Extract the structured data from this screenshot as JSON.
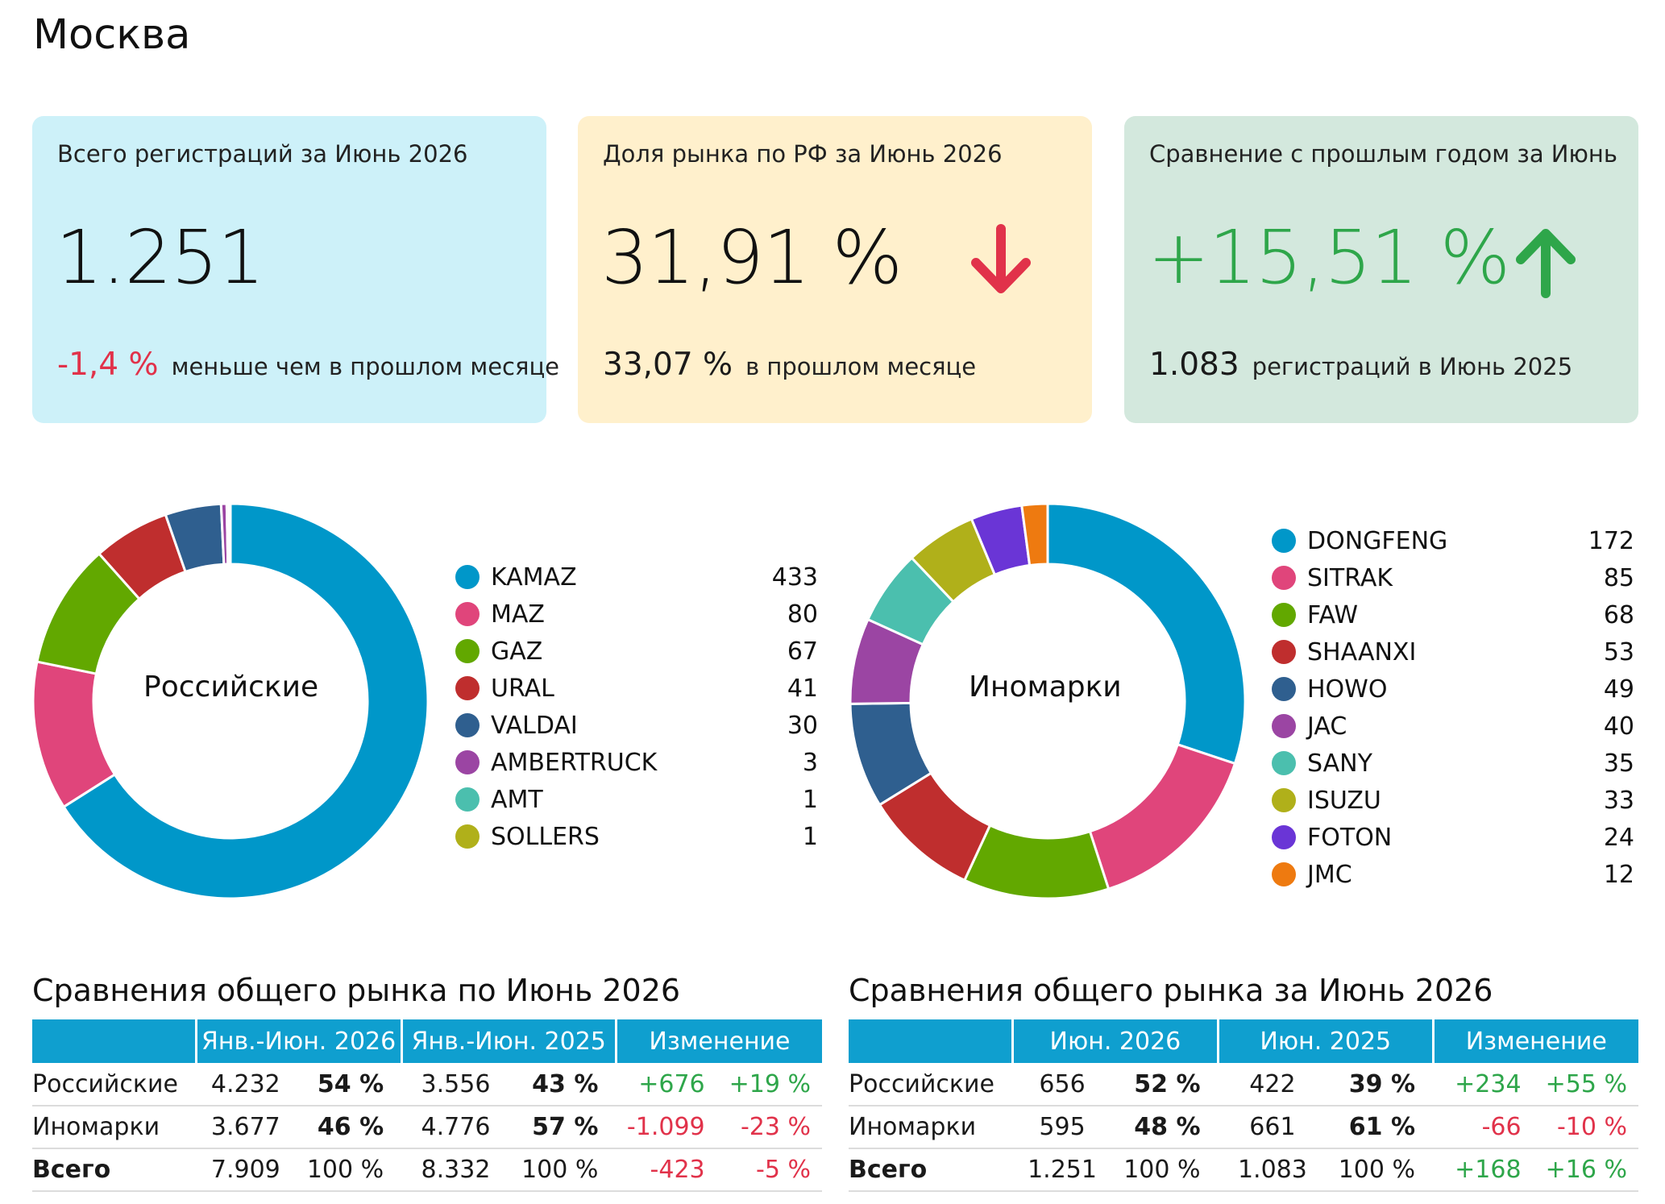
{
  "page": {
    "title": "Москва"
  },
  "cards": [
    {
      "label": "Всего регистраций за Июнь 2026",
      "value": "1.251",
      "foot_value": "-1,4 %",
      "foot_text": "меньше чем в прошлом месяце"
    },
    {
      "label": "Доля рынка по РФ за Июнь 2026",
      "value": "31,91 %",
      "arrow": "arrow-down-icon",
      "foot_value": "33,07 %",
      "foot_text": "в прошлом месяце"
    },
    {
      "label": "Сравнение с прошлым годом за Июнь",
      "value": "+15,51 %",
      "arrow": "arrow-up-icon",
      "foot_value": "1.083",
      "foot_text": "регистраций в Июнь 2025"
    }
  ],
  "colors": {
    "accent_red": "#e1324a",
    "accent_green": "#2ea64a",
    "table_header": "#0f9fcf"
  },
  "chart_data": [
    {
      "type": "pie",
      "title": "Российские",
      "categories": [
        "KAMAZ",
        "MAZ",
        "GAZ",
        "URAL",
        "VALDAI",
        "AMBERTRUCK",
        "AMT",
        "SOLLERS"
      ],
      "values": [
        433,
        80,
        67,
        41,
        30,
        3,
        1,
        1
      ],
      "colors": [
        "#0097c9",
        "#e0457b",
        "#62a800",
        "#bf2e2e",
        "#2f5f8f",
        "#9b45a3",
        "#4bbfae",
        "#b0b01a"
      ],
      "legend": "right"
    },
    {
      "type": "pie",
      "title": "Иномарки",
      "categories": [
        "DONGFENG",
        "SITRAK",
        "FAW",
        "SHAANXI",
        "HOWO",
        "JAC",
        "SANY",
        "ISUZU",
        "FOTON",
        "JMC"
      ],
      "values": [
        172,
        85,
        68,
        53,
        49,
        40,
        35,
        33,
        24,
        12
      ],
      "colors": [
        "#0097c9",
        "#e0457b",
        "#62a800",
        "#bf2e2e",
        "#2f5f8f",
        "#9b45a3",
        "#4bbfae",
        "#b0b01a",
        "#6a35d6",
        "#ee7a10"
      ],
      "legend": "right"
    },
    {
      "type": "table",
      "title": "Сравнения общего рынка по Июнь 2026",
      "columns": [
        "Янв.-Июн. 2026",
        "Янв.-Июн. 2025",
        "Изменение"
      ],
      "rows": [
        {
          "label": "Российские",
          "c1": "4.232",
          "p1": "54 %",
          "c2": "3.556",
          "p2": "43 %",
          "d": "+676",
          "dp": "+19 %",
          "sign": "pos"
        },
        {
          "label": "Иномарки",
          "c1": "3.677",
          "p1": "46 %",
          "c2": "4.776",
          "p2": "57 %",
          "d": "-1.099",
          "dp": "-23 %",
          "sign": "neg"
        },
        {
          "label": "Всего",
          "c1": "7.909",
          "p1": "100 %",
          "c2": "8.332",
          "p2": "100 %",
          "d": "-423",
          "dp": "-5 %",
          "sign": "neg"
        }
      ]
    },
    {
      "type": "table",
      "title": "Сравнения общего рынка за Июнь 2026",
      "columns": [
        "Июн. 2026",
        "Июн. 2025",
        "Изменение"
      ],
      "rows": [
        {
          "label": "Российские",
          "c1": "656",
          "p1": "52 %",
          "c2": "422",
          "p2": "39 %",
          "d": "+234",
          "dp": "+55 %",
          "sign": "pos"
        },
        {
          "label": "Иномарки",
          "c1": "595",
          "p1": "48 %",
          "c2": "661",
          "p2": "61 %",
          "d": "-66",
          "dp": "-10 %",
          "sign": "neg"
        },
        {
          "label": "Всего",
          "c1": "1.251",
          "p1": "100 %",
          "c2": "1.083",
          "p2": "100 %",
          "d": "+168",
          "dp": "+16 %",
          "sign": "pos"
        }
      ]
    }
  ]
}
